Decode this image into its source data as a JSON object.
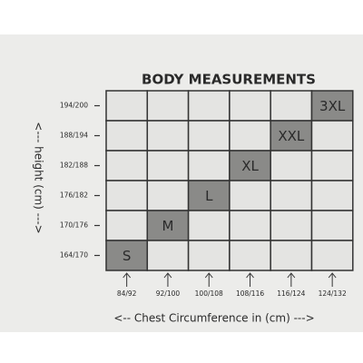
{
  "title": "BODY MEASUREMENTS",
  "y_axis_label": "<--- height (cm) --->",
  "x_axis_label": "<-- Chest Circumference in (cm) --->",
  "y_labels": [
    "194/200",
    "188/194",
    "182/188",
    "176/182",
    "170/176",
    "164/170"
  ],
  "x_labels": [
    "84/92",
    "92/100",
    "100/108",
    "108/116",
    "116/124",
    "124/132"
  ],
  "sizes": [
    "S",
    "M",
    "L",
    "XL",
    "XXL",
    "3XL"
  ]
}
